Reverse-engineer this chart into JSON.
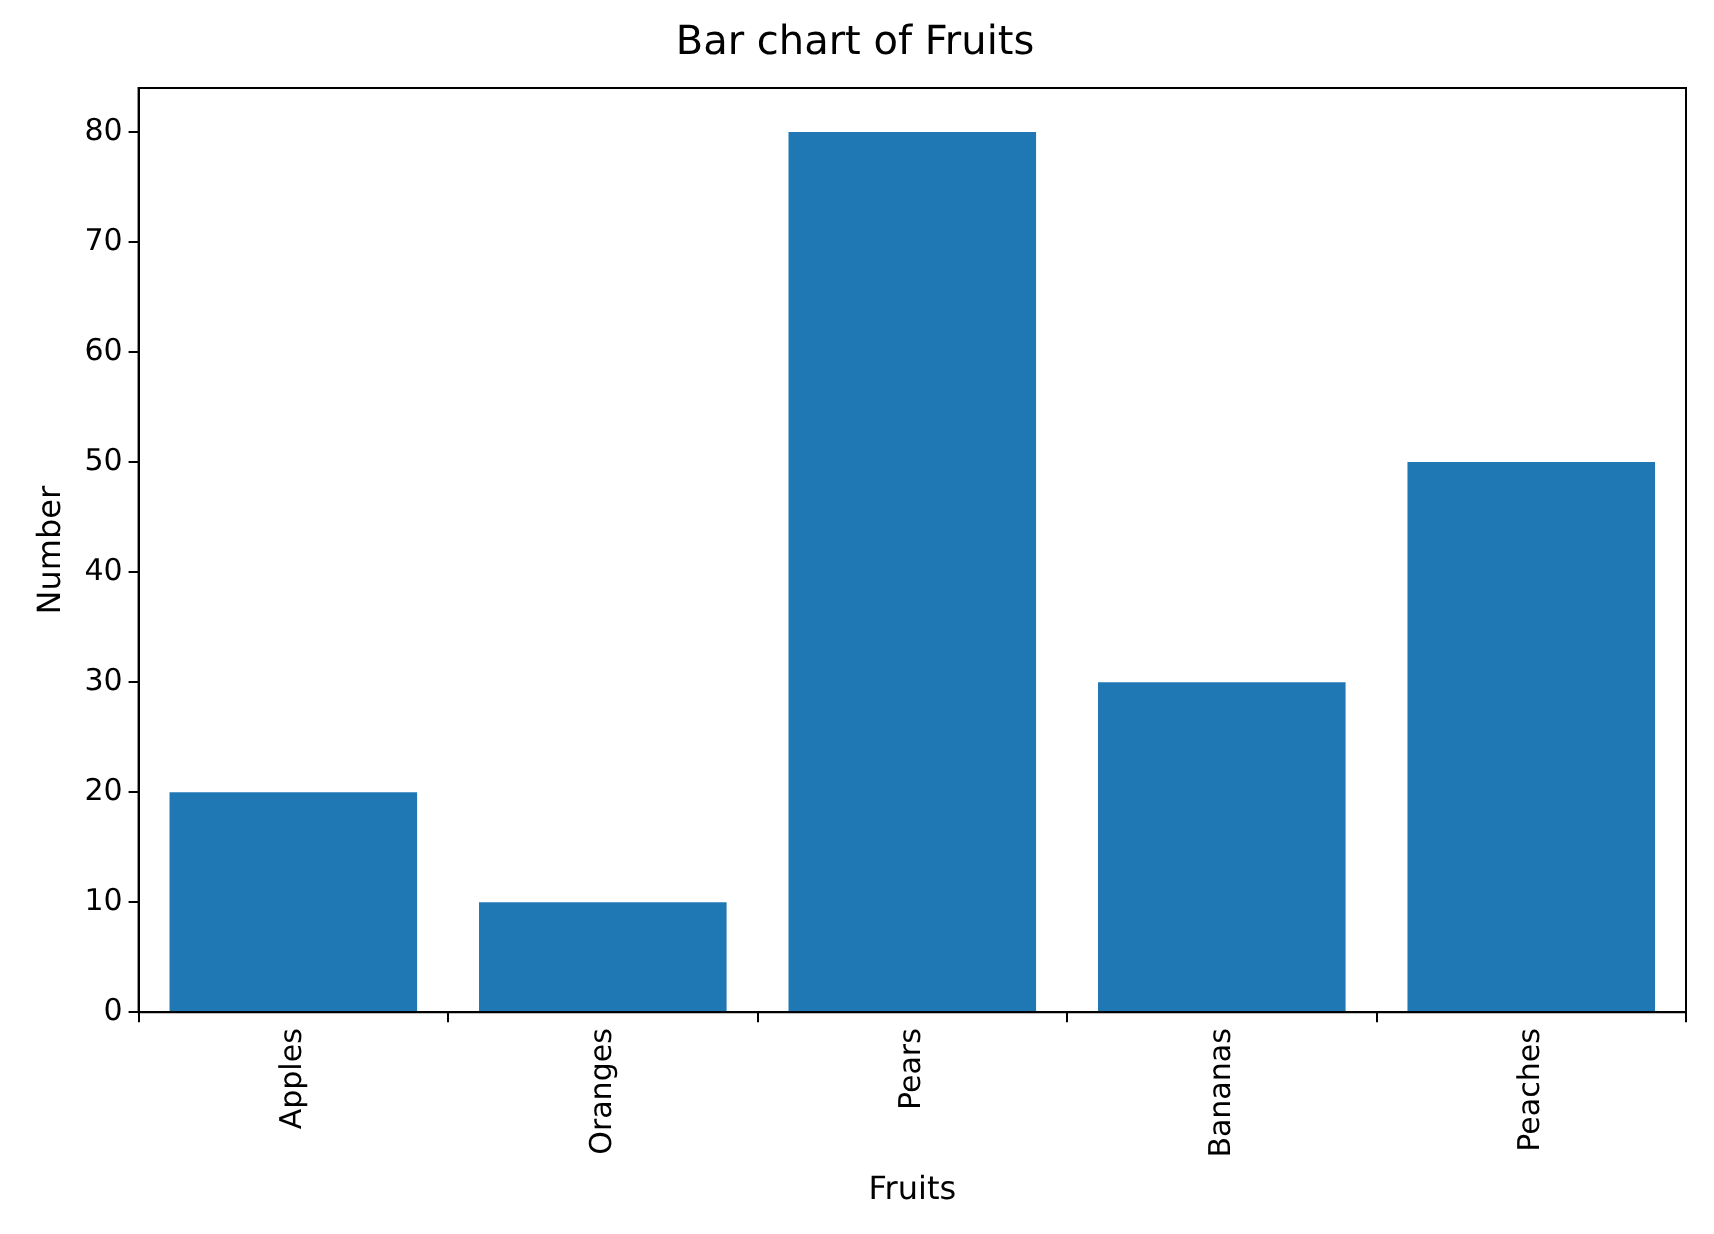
{
  "chart_data": {
    "type": "bar",
    "title": "Bar chart of Fruits",
    "xlabel": "Fruits",
    "ylabel": "Number",
    "categories": [
      "Apples",
      "Oranges",
      "Pears",
      "Bananas",
      "Peaches"
    ],
    "values": [
      20,
      10,
      80,
      30,
      50
    ],
    "color": "#1f77b4",
    "ylim": [
      0,
      84
    ],
    "yticks": [
      0,
      10,
      20,
      30,
      40,
      50,
      60,
      70,
      80
    ],
    "grid": false,
    "legend": false
  }
}
